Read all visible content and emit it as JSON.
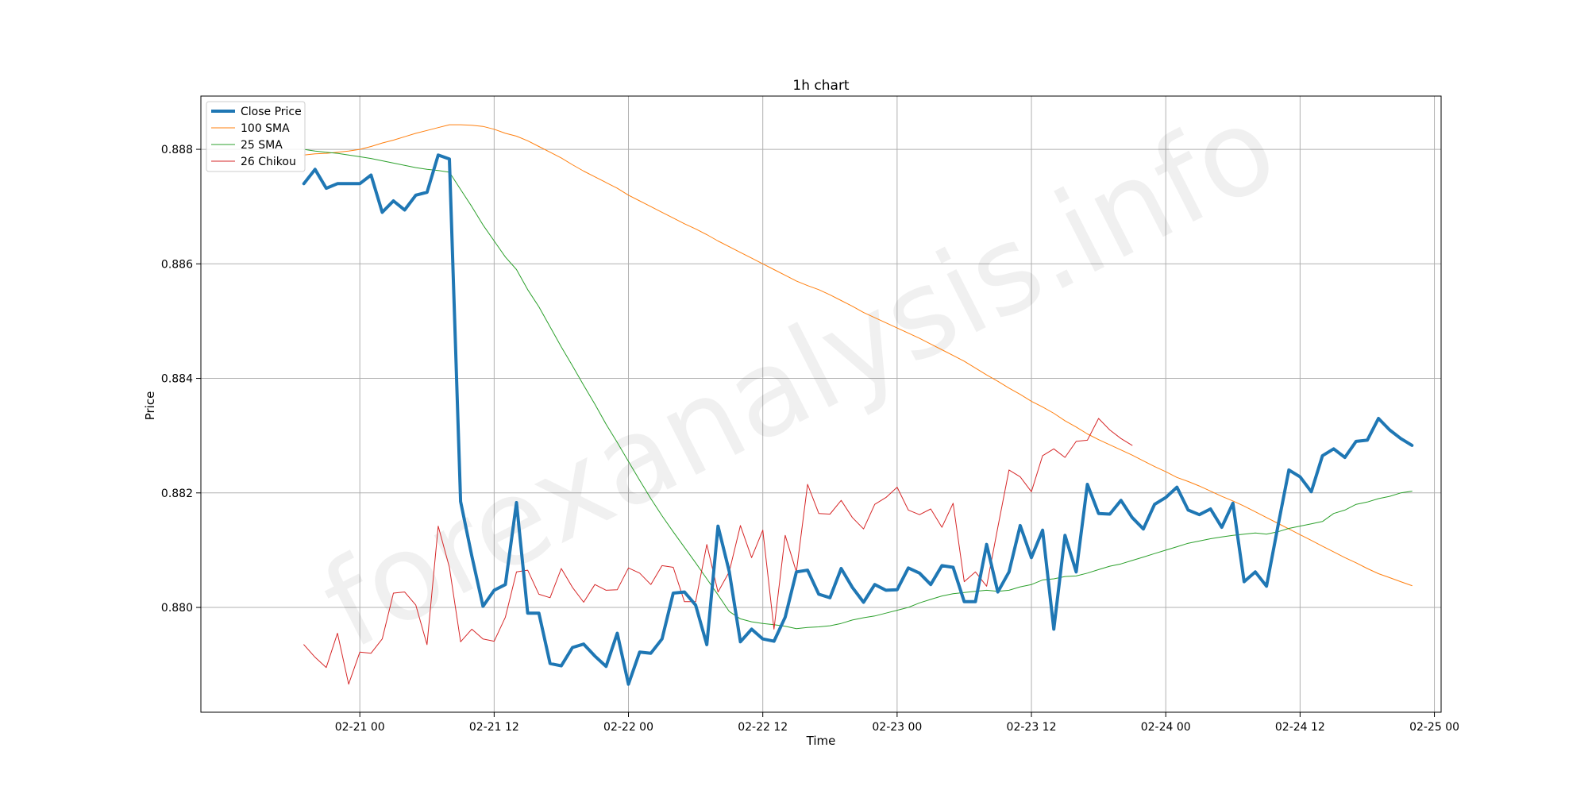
{
  "chart_data": {
    "type": "line",
    "title": "1h chart",
    "xlabel": "Time",
    "ylabel": "Price",
    "watermark": "forexanalysis.info",
    "x_start": "02-20 19:00",
    "x_step_hours": 1,
    "xlim_hours": [
      -9.2,
      101.6
    ],
    "ylim": [
      0.87817,
      0.88893
    ],
    "x_ticks": [
      {
        "label": "02-21 00",
        "hours": 5
      },
      {
        "label": "02-21 12",
        "hours": 17
      },
      {
        "label": "02-22 00",
        "hours": 29
      },
      {
        "label": "02-22 12",
        "hours": 41
      },
      {
        "label": "02-23 00",
        "hours": 53
      },
      {
        "label": "02-23 12",
        "hours": 65
      },
      {
        "label": "02-24 00",
        "hours": 77
      },
      {
        "label": "02-24 12",
        "hours": 89
      },
      {
        "label": "02-25 00",
        "hours": 101
      }
    ],
    "y_ticks": [
      {
        "label": "0.880",
        "value": 0.88
      },
      {
        "label": "0.882",
        "value": 0.882
      },
      {
        "label": "0.884",
        "value": 0.884
      },
      {
        "label": "0.886",
        "value": 0.886
      },
      {
        "label": "0.888",
        "value": 0.888
      }
    ],
    "grid": true,
    "legend_position": "top-left",
    "series": [
      {
        "name": "Close Price",
        "color": "#1f77b4",
        "width": "thick",
        "start_hour": 0,
        "values": [
          0.8874,
          0.88765,
          0.88732,
          0.8874,
          0.8874,
          0.8874,
          0.88755,
          0.8869,
          0.8871,
          0.88694,
          0.8872,
          0.88725,
          0.8879,
          0.88783,
          0.88185,
          0.8809,
          0.88002,
          0.8803,
          0.8804,
          0.88183,
          0.8799,
          0.8799,
          0.87902,
          0.87898,
          0.8793,
          0.87936,
          0.87915,
          0.87897,
          0.87955,
          0.87866,
          0.87922,
          0.8792,
          0.87945,
          0.88025,
          0.88027,
          0.88004,
          0.87935,
          0.88142,
          0.88063,
          0.8794,
          0.87962,
          0.87945,
          0.87941,
          0.87983,
          0.88062,
          0.88065,
          0.88023,
          0.88017,
          0.88068,
          0.88035,
          0.88009,
          0.8804,
          0.8803,
          0.88031,
          0.88069,
          0.8806,
          0.8804,
          0.88073,
          0.8807,
          0.8801,
          0.8801,
          0.8811,
          0.88027,
          0.88062,
          0.88143,
          0.88087,
          0.88135,
          0.87962,
          0.88126,
          0.88062,
          0.88215,
          0.88164,
          0.88163,
          0.88187,
          0.88157,
          0.88137,
          0.8818,
          0.88192,
          0.8821,
          0.8817,
          0.88162,
          0.88172,
          0.8814,
          0.88182,
          0.88045,
          0.88062,
          0.88037,
          0.8814,
          0.8824,
          0.88228,
          0.88202,
          0.88265,
          0.88277,
          0.88262,
          0.8829,
          0.88292,
          0.8833,
          0.8831,
          0.88295,
          0.88283
        ]
      },
      {
        "name": "100 SMA",
        "color": "#ff7f0e",
        "width": "thin",
        "start_hour": 0,
        "values": [
          0.8879,
          0.88792,
          0.88793,
          0.88795,
          0.88797,
          0.888,
          0.88805,
          0.88811,
          0.88816,
          0.88822,
          0.88828,
          0.88833,
          0.88838,
          0.88843,
          0.88843,
          0.88842,
          0.8884,
          0.88835,
          0.88828,
          0.88823,
          0.88815,
          0.88805,
          0.88795,
          0.88785,
          0.88773,
          0.88762,
          0.88752,
          0.88742,
          0.88732,
          0.8872,
          0.8871,
          0.887,
          0.8869,
          0.8868,
          0.8867,
          0.88661,
          0.88651,
          0.8864,
          0.8863,
          0.8862,
          0.8861,
          0.886,
          0.8859,
          0.8858,
          0.8857,
          0.88562,
          0.88555,
          0.88546,
          0.88536,
          0.88526,
          0.88515,
          0.88506,
          0.88497,
          0.88488,
          0.88479,
          0.8847,
          0.8846,
          0.8845,
          0.8844,
          0.8843,
          0.88418,
          0.88406,
          0.88395,
          0.88383,
          0.88372,
          0.8836,
          0.8835,
          0.88339,
          0.88326,
          0.88315,
          0.88303,
          0.88293,
          0.88284,
          0.88275,
          0.88266,
          0.88256,
          0.88246,
          0.88237,
          0.88227,
          0.8822,
          0.88212,
          0.88203,
          0.88194,
          0.88186,
          0.88177,
          0.88167,
          0.88157,
          0.88147,
          0.88137,
          0.88127,
          0.88117,
          0.88107,
          0.88097,
          0.88087,
          0.88078,
          0.88068,
          0.88059,
          0.88052,
          0.88045,
          0.88038
        ]
      },
      {
        "name": "25 SMA",
        "color": "#2ca02c",
        "width": "thin",
        "start_hour": 0,
        "values": [
          0.888,
          0.88797,
          0.88795,
          0.88793,
          0.8879,
          0.88787,
          0.88784,
          0.8878,
          0.88776,
          0.88772,
          0.88768,
          0.88765,
          0.88763,
          0.8876,
          0.8873,
          0.887,
          0.88668,
          0.8864,
          0.88612,
          0.8859,
          0.88555,
          0.88525,
          0.8849,
          0.88455,
          0.88422,
          0.88388,
          0.88355,
          0.8832,
          0.88288,
          0.88255,
          0.88222,
          0.8819,
          0.8816,
          0.88132,
          0.88105,
          0.88078,
          0.8805,
          0.88022,
          0.87993,
          0.8798,
          0.87975,
          0.87972,
          0.8797,
          0.87967,
          0.87963,
          0.87965,
          0.87966,
          0.87968,
          0.87972,
          0.87978,
          0.87982,
          0.87985,
          0.8799,
          0.87995,
          0.88,
          0.88008,
          0.88014,
          0.8802,
          0.88024,
          0.88026,
          0.88028,
          0.8803,
          0.88028,
          0.8803,
          0.88036,
          0.8804,
          0.88048,
          0.8805,
          0.88054,
          0.88055,
          0.8806,
          0.88066,
          0.88072,
          0.88076,
          0.88082,
          0.88088,
          0.88094,
          0.881,
          0.88106,
          0.88112,
          0.88116,
          0.8812,
          0.88123,
          0.88126,
          0.88128,
          0.8813,
          0.88128,
          0.88132,
          0.88138,
          0.88142,
          0.88146,
          0.8815,
          0.88164,
          0.8817,
          0.8818,
          0.88184,
          0.8819,
          0.88194,
          0.882,
          0.88203
        ]
      },
      {
        "name": "26 Chikou",
        "color": "#d62728",
        "width": "thin",
        "start_hour": 0,
        "values": [
          0.87935,
          0.87913,
          0.87895,
          0.87955,
          0.87866,
          0.87922,
          0.8792,
          0.87945,
          0.88025,
          0.88027,
          0.88004,
          0.87935,
          0.88142,
          0.8807,
          0.8794,
          0.87962,
          0.87945,
          0.87941,
          0.87983,
          0.88062,
          0.88065,
          0.88023,
          0.88017,
          0.88068,
          0.88035,
          0.88009,
          0.8804,
          0.8803,
          0.88031,
          0.88069,
          0.8806,
          0.8804,
          0.88073,
          0.8807,
          0.8801,
          0.8801,
          0.8811,
          0.88027,
          0.88062,
          0.88143,
          0.88087,
          0.88135,
          0.87962,
          0.88126,
          0.88062,
          0.88215,
          0.88164,
          0.88163,
          0.88187,
          0.88157,
          0.88137,
          0.8818,
          0.88192,
          0.8821,
          0.8817,
          0.88162,
          0.88172,
          0.8814,
          0.88182,
          0.88045,
          0.88062,
          0.88037,
          0.8814,
          0.8824,
          0.88228,
          0.88202,
          0.88265,
          0.88277,
          0.88262,
          0.8829,
          0.88292,
          0.8833,
          0.8831,
          0.88295,
          0.88283
        ]
      }
    ]
  }
}
